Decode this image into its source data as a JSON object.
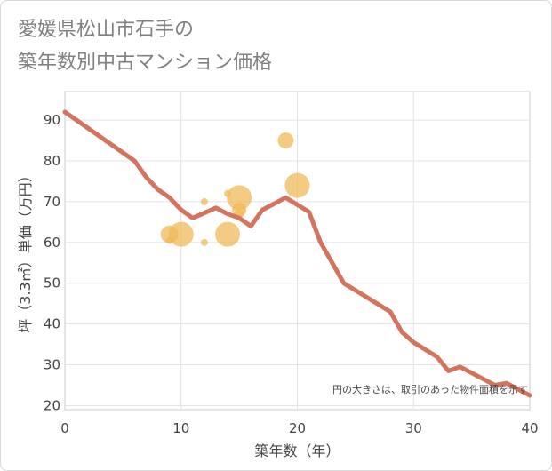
{
  "title_line1": "愛媛県松山市石手の",
  "title_line2": "築年数別中古マンション価格",
  "chart_data": {
    "type": "line",
    "xlabel": "築年数（年）",
    "ylabel": "坪（3.3㎡）単価（万円）",
    "xlim": [
      0,
      40
    ],
    "ylim": [
      19,
      97
    ],
    "xticks": [
      0,
      10,
      20,
      30,
      40
    ],
    "yticks": [
      20,
      30,
      40,
      50,
      60,
      70,
      80,
      90
    ],
    "grid": true,
    "note": "円の大きさは、取引のあった物件面積を示す",
    "colors": {
      "line": "#d4735e",
      "bubble": "#f0b95a"
    },
    "line": {
      "x": [
        0,
        2,
        4,
        6,
        7,
        8,
        9,
        10,
        11,
        13,
        14,
        15,
        16,
        17,
        19,
        21,
        22,
        24,
        26,
        28,
        29,
        30,
        32,
        33,
        34,
        35,
        37,
        38,
        39,
        40
      ],
      "y": [
        92,
        88,
        84,
        80,
        76,
        73,
        71,
        68,
        66,
        68.5,
        67,
        66,
        64,
        68,
        71,
        67.5,
        60,
        50,
        46.5,
        43,
        38,
        35.5,
        32,
        28.5,
        29.5,
        28,
        25,
        25.5,
        24,
        22.5
      ]
    },
    "bubbles": [
      {
        "x": 9,
        "y": 62,
        "size": 10
      },
      {
        "x": 9,
        "y": 60.5,
        "size": 4
      },
      {
        "x": 10,
        "y": 62,
        "size": 14
      },
      {
        "x": 12,
        "y": 70,
        "size": 4
      },
      {
        "x": 12,
        "y": 60,
        "size": 4
      },
      {
        "x": 14,
        "y": 72,
        "size": 4
      },
      {
        "x": 14,
        "y": 62,
        "size": 14
      },
      {
        "x": 15,
        "y": 71,
        "size": 14
      },
      {
        "x": 15,
        "y": 68,
        "size": 8
      },
      {
        "x": 15,
        "y": 67,
        "size": 5
      },
      {
        "x": 19,
        "y": 85,
        "size": 9
      },
      {
        "x": 20,
        "y": 74,
        "size": 14
      }
    ]
  }
}
